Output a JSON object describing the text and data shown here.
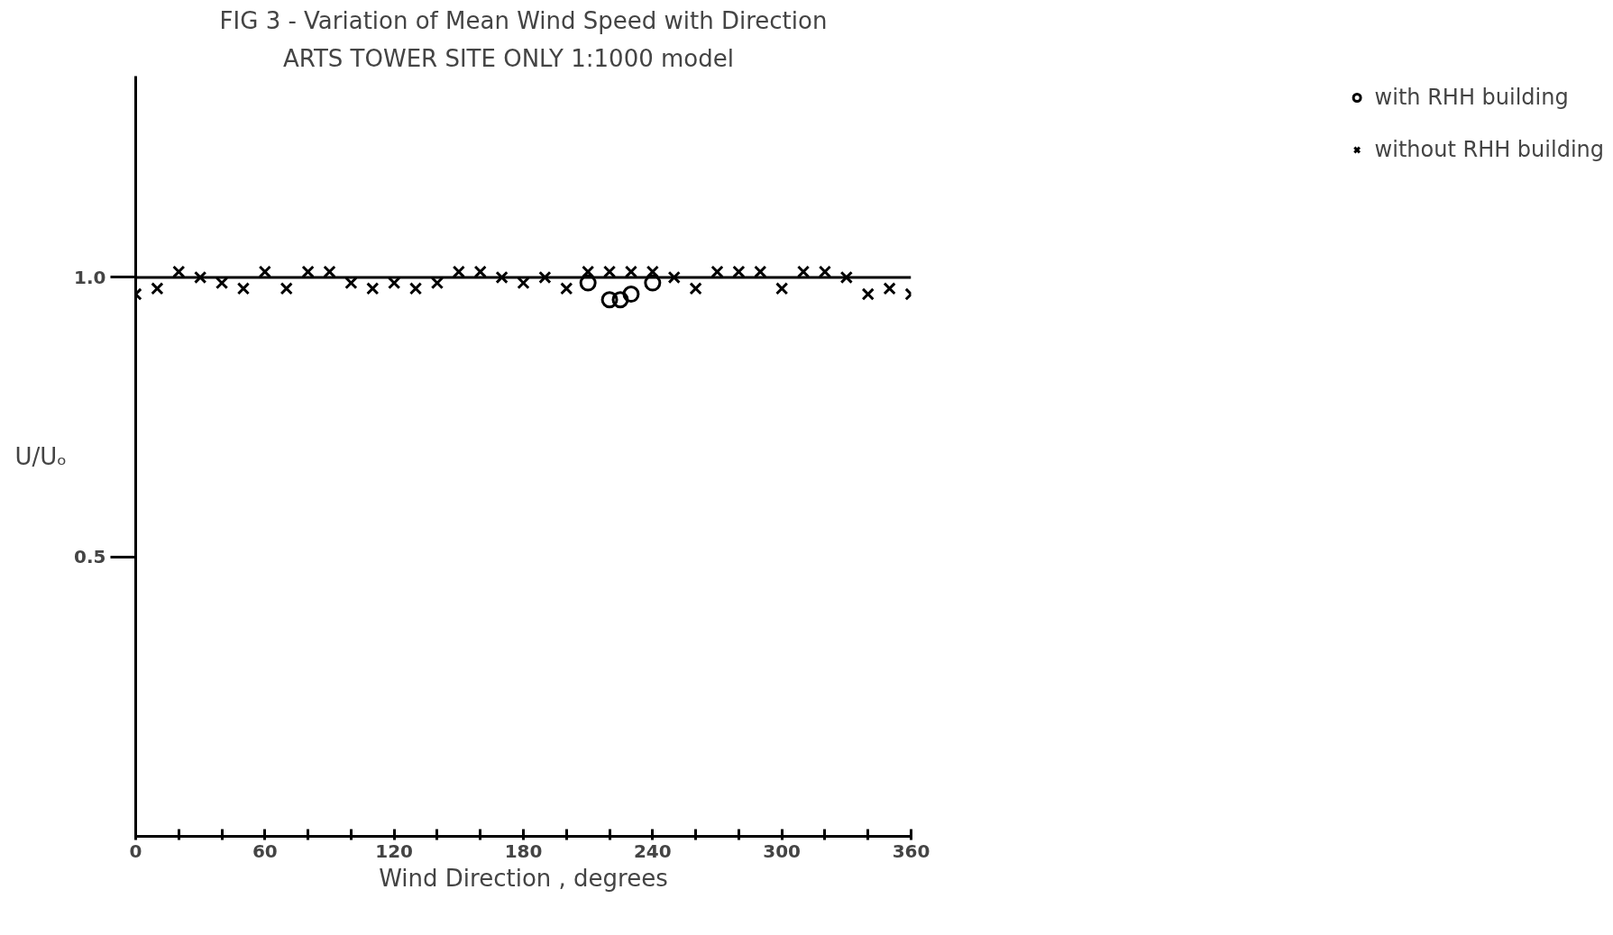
{
  "chart_data": {
    "type": "scatter",
    "title": "FIG 3 - Variation of Mean Wind Speed with Direction",
    "subtitle": "ARTS TOWER   SITE ONLY   1:1000 model",
    "xlabel": "Wind Direction , degrees",
    "ylabel": "U/Uₒ",
    "xlim": [
      0,
      360
    ],
    "ylim": [
      0,
      1.36
    ],
    "xticks": [
      0,
      {
        "value": 20,
        "label": null
      },
      {
        "value": 40,
        "label": null
      },
      60,
      {
        "value": 80,
        "label": null
      },
      {
        "value": 100,
        "label": null
      },
      120,
      {
        "value": 140,
        "label": null
      },
      {
        "value": 160,
        "label": null
      },
      180,
      {
        "value": 200,
        "label": null
      },
      {
        "value": 220,
        "label": null
      },
      240,
      {
        "value": 260,
        "label": null
      },
      {
        "value": 280,
        "label": null
      },
      300,
      {
        "value": 320,
        "label": null
      },
      {
        "value": 340,
        "label": null
      },
      360
    ],
    "yticks": [
      0.5,
      {
        "value": 1.0,
        "label": "1.0"
      }
    ],
    "grid": false,
    "legend": "right",
    "ref_lines": [
      {
        "axis": "y",
        "value": 1.0,
        "color": "#000000"
      }
    ],
    "series": [
      {
        "name": "with RHH building",
        "color": "#000000",
        "marker": "circle",
        "x": [
          210,
          220,
          225,
          230,
          240
        ],
        "values": [
          0.99,
          0.96,
          0.96,
          0.97,
          0.99
        ]
      },
      {
        "name": "without RHH building",
        "color": "#000000",
        "marker": "cross",
        "x": [
          0,
          10,
          20,
          30,
          40,
          50,
          60,
          70,
          80,
          90,
          100,
          110,
          120,
          130,
          140,
          150,
          160,
          170,
          180,
          190,
          200,
          210,
          220,
          230,
          240,
          250,
          260,
          270,
          280,
          290,
          300,
          310,
          320,
          330,
          340,
          350,
          360
        ],
        "values": [
          0.97,
          0.98,
          1.01,
          1.0,
          0.99,
          0.98,
          1.01,
          0.98,
          1.01,
          1.01,
          0.99,
          0.98,
          0.99,
          0.98,
          0.99,
          1.01,
          1.01,
          1.0,
          0.99,
          1.0,
          0.98,
          1.01,
          1.01,
          1.01,
          1.01,
          1.0,
          0.98,
          1.01,
          1.01,
          1.01,
          0.98,
          1.01,
          1.01,
          1.0,
          0.97,
          0.98,
          0.97
        ]
      }
    ]
  }
}
